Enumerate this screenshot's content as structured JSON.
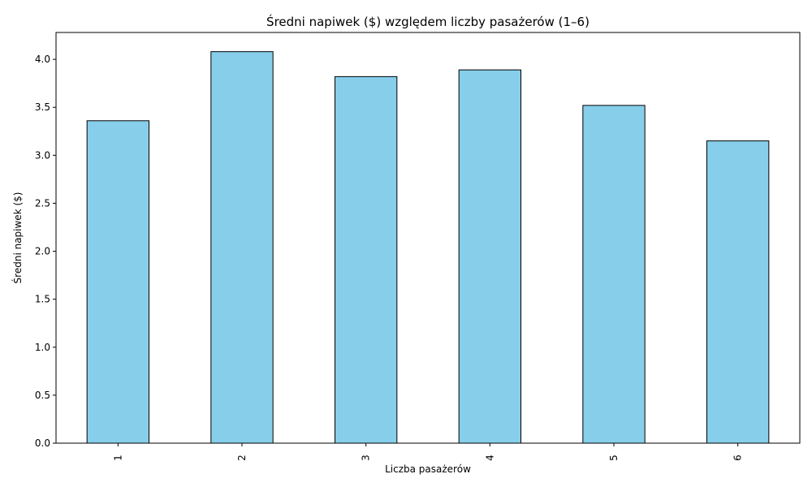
{
  "chart_data": {
    "type": "bar",
    "title": "Średni napiwek ($) względem liczby pasażerów (1–6)",
    "xlabel": "Liczba pasażerów",
    "ylabel": "Średni napiwek ($)",
    "categories": [
      "1",
      "2",
      "3",
      "4",
      "5",
      "6"
    ],
    "values": [
      3.36,
      4.08,
      3.82,
      3.89,
      3.52,
      3.15
    ],
    "ylim": [
      0,
      4.28
    ],
    "yticks": [
      0.0,
      0.5,
      1.0,
      1.5,
      2.0,
      2.5,
      3.0,
      3.5,
      4.0
    ],
    "ytick_labels": [
      "0.0",
      "0.5",
      "1.0",
      "1.5",
      "2.0",
      "2.5",
      "3.0",
      "3.5",
      "4.0"
    ],
    "grid": false,
    "legend": "none",
    "x_tick_rotation": "vertical",
    "colors": {
      "bar_fill": "#87ceeb",
      "bar_edge": "#000000",
      "axes": "#000000",
      "background": "#ffffff"
    }
  }
}
